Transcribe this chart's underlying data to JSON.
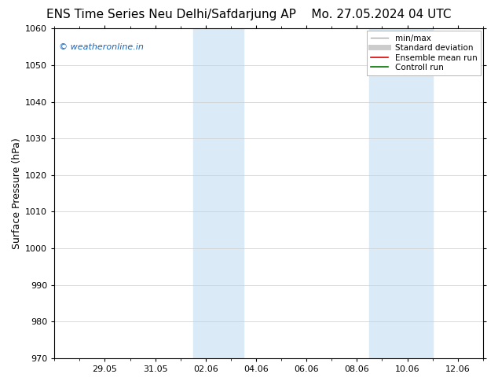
{
  "title_left": "ENS Time Series Neu Delhi/Safdarjung AP",
  "title_right": "Mo. 27.05.2024 04 UTC",
  "ylabel": "Surface Pressure (hPa)",
  "ylim": [
    970,
    1060
  ],
  "yticks": [
    970,
    980,
    990,
    1000,
    1010,
    1020,
    1030,
    1040,
    1050,
    1060
  ],
  "xtick_labels": [
    "29.05",
    "31.05",
    "02.06",
    "04.06",
    "06.06",
    "08.06",
    "10.06",
    "12.06"
  ],
  "xtick_days": [
    2,
    4,
    6,
    8,
    10,
    12,
    14,
    16
  ],
  "xlim": [
    0,
    17
  ],
  "shaded_bands": [
    {
      "x_start": 5.5,
      "x_end": 7.5,
      "color": "#daeaf7"
    },
    {
      "x_start": 12.5,
      "x_end": 15.0,
      "color": "#daeaf7"
    }
  ],
  "watermark_text": "© weatheronline.in",
  "watermark_color": "#1565c0",
  "legend_items": [
    {
      "label": "min/max",
      "color": "#aaaaaa",
      "lw": 1.0
    },
    {
      "label": "Standard deviation",
      "color": "#cccccc",
      "lw": 5.0
    },
    {
      "label": "Ensemble mean run",
      "color": "#dd0000",
      "lw": 1.2
    },
    {
      "label": "Controll run",
      "color": "#007700",
      "lw": 1.2
    }
  ],
  "bg_color": "#ffffff",
  "title_fontsize": 11,
  "ylabel_fontsize": 9,
  "tick_fontsize": 8,
  "watermark_fontsize": 8,
  "legend_fontsize": 7.5
}
